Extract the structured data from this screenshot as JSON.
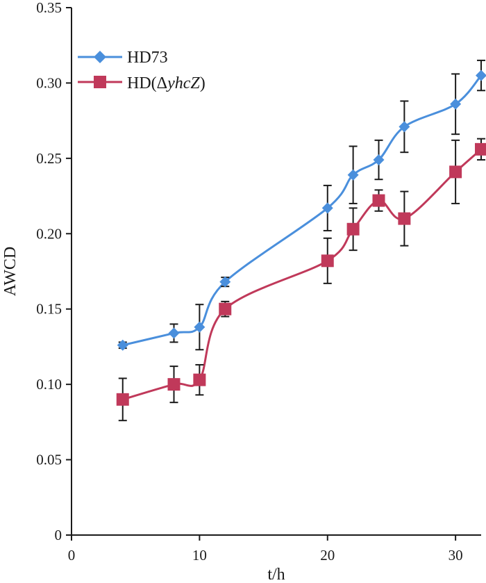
{
  "chart_data": {
    "type": "line",
    "title": "",
    "xlabel": "t/h",
    "ylabel": "AWCD",
    "xlim": [
      0,
      32
    ],
    "ylim": [
      0,
      0.35
    ],
    "xticks": [
      0,
      10,
      20,
      30
    ],
    "xtick_labels": [
      "0",
      "10",
      "20",
      "30"
    ],
    "yticks": [
      0,
      0.05,
      0.1,
      0.15,
      0.2,
      0.25,
      0.3,
      0.35
    ],
    "ytick_labels": [
      "0",
      "0.05",
      "0.10",
      "0.15",
      "0.20",
      "0.25",
      "0.30",
      "0.35"
    ],
    "grid": false,
    "legend_position": "top-left",
    "x": [
      4,
      8,
      10,
      12,
      20,
      22,
      24,
      26,
      30,
      32
    ],
    "series": [
      {
        "name": "HD73",
        "name_prefix": "HD(Δ",
        "color": "#4a8fdc",
        "marker": "diamond",
        "values": [
          0.126,
          0.134,
          0.138,
          0.168,
          0.217,
          0.239,
          0.249,
          0.271,
          0.286,
          0.305
        ],
        "errors": [
          0.002,
          0.006,
          0.015,
          0.003,
          0.015,
          0.019,
          0.013,
          0.017,
          0.02,
          0.01
        ]
      },
      {
        "name": "HD(ΔyhcZ)",
        "name_prefix": "HD(Δ",
        "name_italic": "yhcZ",
        "name_suffix": ")",
        "color": "#c0395a",
        "marker": "square",
        "values": [
          0.09,
          0.1,
          0.103,
          0.15,
          0.182,
          0.203,
          0.222,
          0.21,
          0.241,
          0.256
        ],
        "errors": [
          0.014,
          0.012,
          0.01,
          0.005,
          0.015,
          0.014,
          0.007,
          0.018,
          0.021,
          0.007
        ]
      }
    ]
  }
}
